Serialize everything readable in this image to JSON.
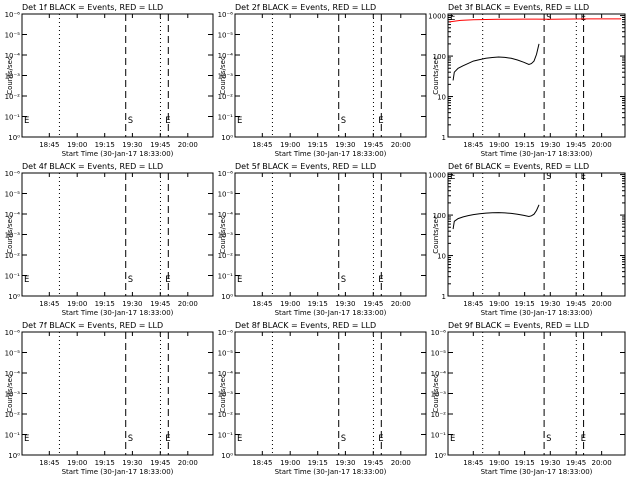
{
  "chart_data": [
    {
      "type": "line",
      "title": "Det 1f BLACK = Events, RED = LLD",
      "xlabel": "Start Time (30-Jan-17 18:33:00)",
      "ylabel": "Counts/sec",
      "scale": "log-small",
      "ytick_labels": [
        "10⁰",
        "10⁻¹",
        "10⁻²",
        "10⁻³",
        "10⁻⁴",
        "10⁻⁵",
        "10⁻⁶"
      ],
      "xtick_labels": [
        "18:45",
        "19:00",
        "19:15",
        "19:30",
        "19:45",
        "20:00"
      ],
      "markers": [
        "E",
        "S",
        "E"
      ],
      "series": []
    },
    {
      "type": "line",
      "title": "Det 2f BLACK = Events, RED = LLD",
      "xlabel": "Start Time (30-Jan-17 18:33:00)",
      "ylabel": "Counts/sec",
      "scale": "log-small",
      "ytick_labels": [
        "10⁰",
        "10⁻¹",
        "10⁻²",
        "10⁻³",
        "10⁻⁴",
        "10⁻⁵",
        "10⁻⁶"
      ],
      "xtick_labels": [
        "18:45",
        "19:00",
        "19:15",
        "19:30",
        "19:45",
        "20:00"
      ],
      "markers": [
        "E",
        "S",
        "E"
      ],
      "series": []
    },
    {
      "type": "line",
      "title": "Det 3f BLACK = Events, RED = LLD",
      "xlabel": "Start Time (30-Jan-17 18:33:00)",
      "ylabel": "Counts/sec",
      "scale": "log-big",
      "ytick_labels": [
        "1",
        "10",
        "100",
        "1000"
      ],
      "xtick_labels": [
        "18:45",
        "19:00",
        "19:15",
        "19:30",
        "19:45",
        "20:00"
      ],
      "markers": [
        "E",
        "S",
        "E"
      ],
      "series": [
        {
          "color": "#ff0000",
          "x": [
            1,
            10,
            20,
            30,
            40,
            50,
            60,
            70,
            80,
            82,
            90,
            100,
            110,
            120,
            130,
            137
          ],
          "y": [
            700,
            760,
            790,
            800,
            810,
            815,
            820,
            820,
            815,
            810,
            820,
            825,
            830,
            830,
            830,
            830
          ]
        },
        {
          "color": "#000000",
          "x": [
            4,
            5,
            8,
            12,
            16,
            20,
            25,
            30,
            35,
            40,
            45,
            50,
            55,
            60,
            64,
            66,
            68,
            70,
            72
          ],
          "y": [
            25,
            40,
            50,
            58,
            66,
            75,
            82,
            88,
            92,
            95,
            93,
            88,
            80,
            70,
            62,
            65,
            75,
            110,
            200
          ]
        }
      ]
    },
    {
      "type": "line",
      "title": "Det 4f BLACK = Events, RED = LLD",
      "xlabel": "Start Time (30-Jan-17 18:33:00)",
      "ylabel": "Counts/sec",
      "scale": "log-small",
      "ytick_labels": [
        "10⁰",
        "10⁻¹",
        "10⁻²",
        "10⁻³",
        "10⁻⁴",
        "10⁻⁵",
        "10⁻⁶"
      ],
      "xtick_labels": [
        "18:45",
        "19:00",
        "19:15",
        "19:30",
        "19:45",
        "20:00"
      ],
      "markers": [
        "E",
        "S",
        "E"
      ],
      "series": []
    },
    {
      "type": "line",
      "title": "Det 5f BLACK = Events, RED = LLD",
      "xlabel": "Start Time (30-Jan-17 18:33:00)",
      "ylabel": "Counts/sec",
      "scale": "log-small",
      "ytick_labels": [
        "10⁰",
        "10⁻¹",
        "10⁻²",
        "10⁻³",
        "10⁻⁴",
        "10⁻⁵",
        "10⁻⁶"
      ],
      "xtick_labels": [
        "18:45",
        "19:00",
        "19:15",
        "19:30",
        "19:45",
        "20:00"
      ],
      "markers": [
        "E",
        "S",
        "E"
      ],
      "series": []
    },
    {
      "type": "line",
      "title": "Det 6f BLACK = Events, RED = LLD",
      "xlabel": "Start Time (30-Jan-17 18:33:00)",
      "ylabel": "Counts/sec",
      "scale": "log-big",
      "ytick_labels": [
        "1",
        "10",
        "100",
        "1000"
      ],
      "xtick_labels": [
        "18:45",
        "19:00",
        "19:15",
        "19:30",
        "19:45",
        "20:00"
      ],
      "markers": [
        "E",
        "S",
        "E"
      ],
      "series": [
        {
          "color": "#000000",
          "x": [
            4,
            5,
            8,
            12,
            16,
            20,
            25,
            30,
            35,
            40,
            45,
            50,
            55,
            60,
            64,
            66,
            68,
            70,
            72
          ],
          "y": [
            45,
            70,
            82,
            90,
            97,
            103,
            108,
            112,
            114,
            115,
            113,
            110,
            105,
            98,
            92,
            96,
            105,
            130,
            180
          ]
        }
      ]
    },
    {
      "type": "line",
      "title": "Det 7f BLACK = Events, RED = LLD",
      "xlabel": "Start Time (30-Jan-17 18:33:00)",
      "ylabel": "Counts/sec",
      "scale": "log-small",
      "ytick_labels": [
        "10⁰",
        "10⁻¹",
        "10⁻²",
        "10⁻³",
        "10⁻⁴",
        "10⁻⁵",
        "10⁻⁶"
      ],
      "xtick_labels": [
        "18:45",
        "19:00",
        "19:15",
        "19:30",
        "19:45",
        "20:00"
      ],
      "markers": [
        "E",
        "S",
        "E"
      ],
      "series": []
    },
    {
      "type": "line",
      "title": "Det 8f BLACK = Events, RED = LLD",
      "xlabel": "Start Time (30-Jan-17 18:33:00)",
      "ylabel": "Counts/sec",
      "scale": "log-small",
      "ytick_labels": [
        "10⁰",
        "10⁻¹",
        "10⁻²",
        "10⁻³",
        "10⁻⁴",
        "10⁻⁵",
        "10⁻⁶"
      ],
      "xtick_labels": [
        "18:45",
        "19:00",
        "19:15",
        "19:30",
        "19:45",
        "20:00"
      ],
      "markers": [
        "E",
        "S",
        "E"
      ],
      "series": []
    },
    {
      "type": "line",
      "title": "Det 9f BLACK = Events, RED = LLD",
      "xlabel": "Start Time (30-Jan-17 18:33:00)",
      "ylabel": "Counts/sec",
      "scale": "log-small",
      "ytick_labels": [
        "10⁰",
        "10⁻¹",
        "10⁻²",
        "10⁻³",
        "10⁻⁴",
        "10⁻⁵",
        "10⁻⁶"
      ],
      "xtick_labels": [
        "18:45",
        "19:00",
        "19:15",
        "19:30",
        "19:45",
        "20:00"
      ],
      "markers": [
        "E",
        "S",
        "E"
      ],
      "series": []
    }
  ]
}
